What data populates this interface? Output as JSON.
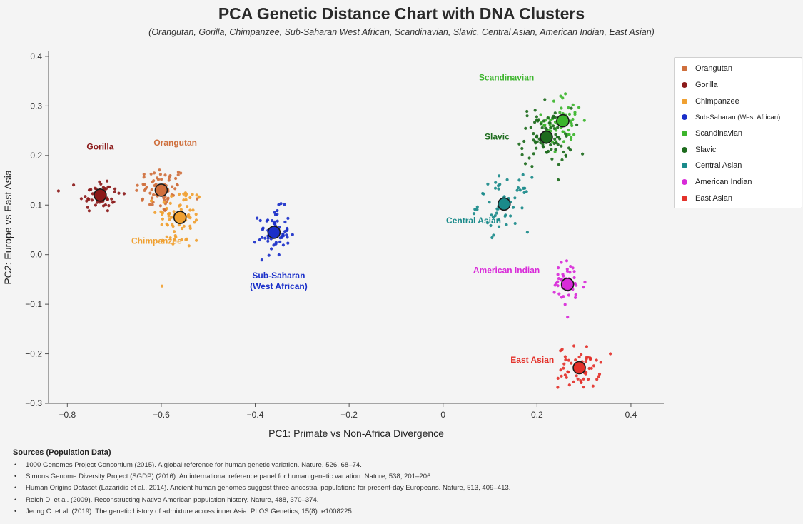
{
  "title": "PCA Genetic Distance Chart with DNA Clusters",
  "subtitle": "(Orangutan, Gorilla, Chimpanzee, Sub-Saharan West African, Scandinavian, Slavic, Central Asian, American Indian, East Asian)",
  "chart_data": {
    "type": "scatter",
    "xlabel": "PC1: Primate vs Non-Africa Divergence",
    "ylabel": "PC2: Europe vs East Asia",
    "xlim": [
      -0.84,
      0.47
    ],
    "ylim": [
      -0.3,
      0.41
    ],
    "xticks": [
      -0.8,
      -0.6,
      -0.4,
      -0.2,
      0,
      0.2,
      0.4
    ],
    "xtick_labels": [
      "−0.8",
      "−0.6",
      "−0.4",
      "−0.2",
      "0",
      "0.2",
      "0.4"
    ],
    "yticks": [
      -0.3,
      -0.2,
      -0.1,
      0,
      0.1,
      0.2,
      0.3,
      0.4
    ],
    "ytick_labels": [
      "−0.3",
      "−0.2",
      "−0.1",
      "0.0",
      "0.1",
      "0.2",
      "0.3",
      "0.4"
    ],
    "grid": false,
    "legend_position": "right",
    "series": [
      {
        "name": "Orangutan",
        "legend": "Orangutan",
        "color": "#cf6f3c",
        "center": [
          -0.6,
          0.13
        ],
        "spread": [
          0.05,
          0.04
        ],
        "n": 70,
        "label": {
          "text": "Orangutan",
          "x": -0.57,
          "y": 0.22
        }
      },
      {
        "name": "Gorilla",
        "legend": "Gorilla",
        "color": "#8b1a1a",
        "center": [
          -0.73,
          0.12
        ],
        "spread": [
          0.04,
          0.03
        ],
        "n": 55,
        "label": {
          "text": "Gorilla",
          "x": -0.73,
          "y": 0.212
        }
      },
      {
        "name": "Chimpanzee",
        "legend": "Chimpanzee",
        "color": "#f0a030",
        "center": [
          -0.56,
          0.075
        ],
        "spread": [
          0.045,
          0.055
        ],
        "n": 75,
        "label": {
          "text": "Chimpanzee",
          "x": -0.61,
          "y": 0.022
        }
      },
      {
        "name": "Sub-Saharan (West African)",
        "legend": "Sub-Saharan (West African)",
        "color": "#1a2fc9",
        "center": [
          -0.36,
          0.045
        ],
        "spread": [
          0.03,
          0.04
        ],
        "n": 60,
        "label": {
          "text": "Sub-Saharan",
          "text2": "(West African)",
          "x": -0.35,
          "y": -0.048
        }
      },
      {
        "name": "Scandinavian",
        "legend": "Scandinavian",
        "color": "#3cb52c",
        "center": [
          0.255,
          0.27
        ],
        "spread": [
          0.04,
          0.045
        ],
        "n": 60,
        "label": {
          "text": "Scandinavian",
          "x": 0.135,
          "y": 0.352
        }
      },
      {
        "name": "Slavic",
        "legend": "Slavic",
        "color": "#1d6b1d",
        "center": [
          0.22,
          0.237
        ],
        "spread": [
          0.05,
          0.05
        ],
        "n": 90,
        "label": {
          "text": "Slavic",
          "x": 0.115,
          "y": 0.232
        }
      },
      {
        "name": "Central Asian",
        "legend": "Central Asian",
        "color": "#1a8a8a",
        "center": [
          0.13,
          0.102
        ],
        "spread": [
          0.05,
          0.045
        ],
        "n": 55,
        "label": {
          "text": "Central Asian",
          "x": 0.065,
          "y": 0.063
        }
      },
      {
        "name": "American Indian",
        "legend": "American Indian",
        "color": "#d82ad8",
        "center": [
          0.265,
          -0.06
        ],
        "spread": [
          0.035,
          0.04
        ],
        "n": 50,
        "label": {
          "text": "American Indian",
          "x": 0.135,
          "y": -0.037
        }
      },
      {
        "name": "East Asian",
        "legend": "East Asian",
        "color": "#e3312a",
        "center": [
          0.29,
          -0.228
        ],
        "spread": [
          0.04,
          0.035
        ],
        "n": 60,
        "label": {
          "text": "East Asian",
          "x": 0.19,
          "y": -0.218
        }
      }
    ]
  },
  "sources": {
    "title": "Sources (Population Data)",
    "items": [
      "1000 Genomes Project Consortium (2015). A global reference for human genetic variation. Nature, 526, 68–74.",
      "Simons Genome Diversity Project (SGDP) (2016). An international reference panel for human genetic variation. Nature, 538, 201–206.",
      "Human Origins Dataset (Lazaridis et al., 2014). Ancient human genomes suggest three ancestral populations for present-day Europeans. Nature, 513, 409–413.",
      "Reich D. et al. (2009). Reconstructing Native American population history. Nature, 488, 370–374.",
      "Jeong C. et al. (2019). The genetic history of admixture across inner Asia. PLOS Genetics, 15(8): e1008225."
    ]
  }
}
